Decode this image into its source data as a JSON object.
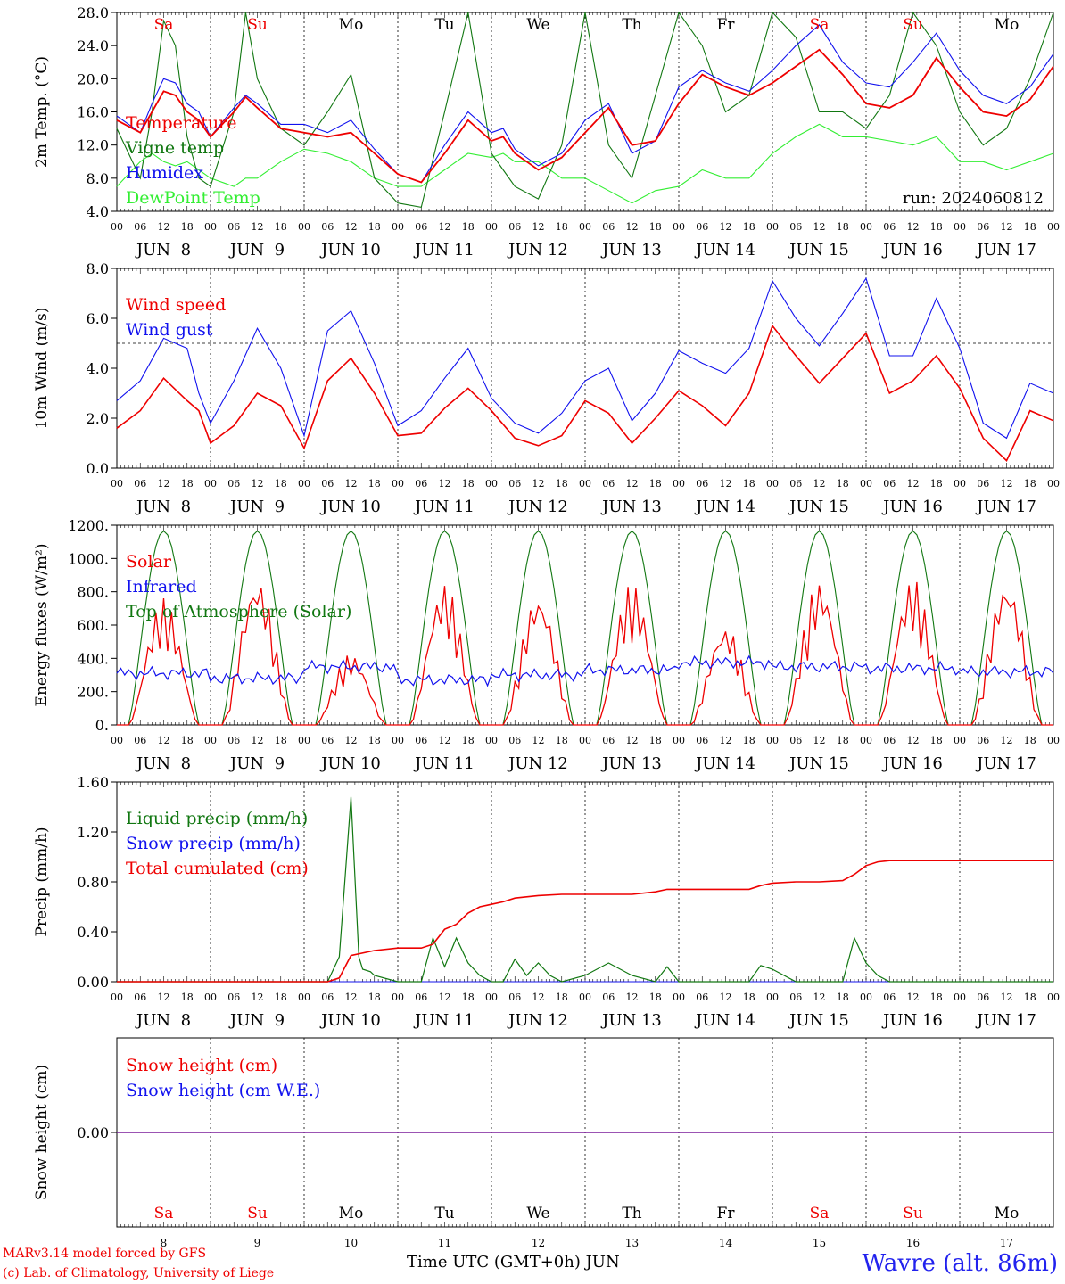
{
  "days": [
    "JUN  8",
    "JUN  9",
    "JUN 10",
    "JUN 11",
    "JUN 12",
    "JUN 13",
    "JUN 14",
    "JUN 15",
    "JUN 16",
    "JUN 17"
  ],
  "hour_ticks": [
    "00",
    "06",
    "12",
    "18"
  ],
  "last_tick": "00",
  "weekdays": [
    {
      "label": "Sa",
      "color": "#ee0000"
    },
    {
      "label": "Su",
      "color": "#ee0000"
    },
    {
      "label": "Mo",
      "color": "#000000"
    },
    {
      "label": "Tu",
      "color": "#000000"
    },
    {
      "label": "We",
      "color": "#000000"
    },
    {
      "label": "Th",
      "color": "#000000"
    },
    {
      "label": "Fr",
      "color": "#000000"
    },
    {
      "label": "Sa",
      "color": "#ee0000"
    },
    {
      "label": "Su",
      "color": "#ee0000"
    },
    {
      "label": "Mo",
      "color": "#000000"
    }
  ],
  "day_numbers": [
    "8",
    "9",
    "10",
    "11",
    "12",
    "13",
    "14",
    "15",
    "16",
    "17"
  ],
  "footer": {
    "model": "MARv3.14 model forced by GFS",
    "lab": "(c) Lab. of Climatology, University of Liege",
    "xlabel": "Time UTC (GMT+0h) JUN",
    "station": "Wavre (alt. 86m)"
  },
  "chart_data": [
    {
      "type": "line",
      "ylabel": "2m Temp. (°C)",
      "ylim": [
        4,
        28
      ],
      "ytick_labels": [
        "4.0",
        "8.0",
        "12.0",
        "16.0",
        "20.0",
        "24.0",
        "28.0"
      ],
      "annotation": "run: 2024060812",
      "legend_position": "upper-left",
      "x_unit": "hours since 2024-06-08 00 UTC",
      "series": [
        {
          "name": "Temperature",
          "color": "#ee0000",
          "x": [
            0,
            6,
            9,
            12,
            15,
            18,
            21,
            24,
            30,
            33,
            36,
            42,
            48,
            54,
            60,
            66,
            72,
            78,
            84,
            90,
            96,
            99,
            102,
            108,
            114,
            120,
            126,
            132,
            138,
            144,
            150,
            156,
            162,
            168,
            174,
            180,
            186,
            192,
            198,
            204,
            210,
            216,
            222,
            228,
            234,
            240
          ],
          "y": [
            15,
            13.5,
            16,
            18.5,
            18,
            16,
            15,
            13,
            16,
            17.8,
            16.5,
            14,
            13.5,
            13,
            13.5,
            11,
            8.5,
            7.5,
            11,
            15,
            12.5,
            13,
            11,
            9,
            10.5,
            13.5,
            16.5,
            12,
            12.5,
            17,
            20.5,
            19,
            18,
            19.5,
            21.5,
            23.5,
            20.5,
            17,
            16.5,
            18,
            22.5,
            19,
            16,
            15.5,
            17.5,
            21.5
          ]
        },
        {
          "name": "Vigne temp",
          "color": "#117711",
          "x": [
            0,
            6,
            9,
            12,
            15,
            18,
            21,
            24,
            30,
            33,
            36,
            42,
            48,
            54,
            60,
            66,
            72,
            78,
            84,
            90,
            96,
            99,
            102,
            108,
            114,
            120,
            126,
            132,
            138,
            144,
            150,
            156,
            162,
            168,
            174,
            180,
            186,
            192,
            198,
            204,
            210,
            216,
            222,
            228,
            234,
            240
          ],
          "y": [
            14,
            8,
            16,
            27,
            24,
            13,
            8,
            7,
            16,
            28,
            20,
            14,
            12,
            16,
            20.5,
            8,
            5,
            4.5,
            16,
            28,
            11,
            9,
            7,
            5.5,
            12,
            28,
            12,
            8,
            18,
            28,
            24,
            16,
            18,
            28,
            25,
            16,
            16,
            14,
            18,
            28,
            24,
            16,
            12,
            14,
            20,
            28
          ]
        },
        {
          "name": "Humidex",
          "color": "#1111ee",
          "x": [
            0,
            6,
            9,
            12,
            15,
            18,
            21,
            24,
            30,
            33,
            36,
            42,
            48,
            54,
            60,
            66,
            72,
            78,
            84,
            90,
            96,
            99,
            102,
            108,
            114,
            120,
            126,
            132,
            138,
            144,
            150,
            156,
            162,
            168,
            174,
            180,
            186,
            192,
            198,
            204,
            210,
            216,
            222,
            228,
            234,
            240
          ],
          "y": [
            15.5,
            13.5,
            17,
            20,
            19.5,
            17,
            16,
            13,
            16.5,
            18,
            17,
            14.5,
            14.5,
            13.5,
            15,
            11.5,
            8.5,
            7.5,
            12,
            16,
            13.5,
            14,
            11.5,
            9.5,
            11,
            15,
            17,
            11,
            12.5,
            19,
            21,
            19.5,
            18.5,
            21,
            24,
            26.5,
            22,
            19.5,
            19,
            22,
            25.5,
            21,
            18,
            17,
            19,
            23
          ]
        },
        {
          "name": "DewPoint Temp",
          "color": "#33ee33",
          "x": [
            0,
            6,
            9,
            12,
            15,
            18,
            21,
            24,
            30,
            33,
            36,
            42,
            48,
            54,
            60,
            66,
            72,
            78,
            84,
            90,
            96,
            99,
            102,
            108,
            114,
            120,
            126,
            132,
            138,
            144,
            150,
            156,
            162,
            168,
            174,
            180,
            186,
            192,
            198,
            204,
            210,
            216,
            222,
            228,
            234,
            240
          ],
          "y": [
            7,
            10,
            11,
            10,
            9.5,
            10,
            9,
            8,
            7,
            8,
            8,
            10,
            11.5,
            11,
            10,
            8,
            7,
            7,
            9,
            11,
            10.5,
            11,
            10,
            10,
            8,
            8,
            6.5,
            5,
            6.5,
            7,
            9,
            8,
            8,
            11,
            13,
            14.5,
            13,
            13,
            12.5,
            12,
            13,
            10,
            10,
            9,
            10,
            11
          ]
        }
      ]
    },
    {
      "type": "line",
      "ylabel": "10m Wind (m/s)",
      "ylim": [
        0,
        8
      ],
      "ytick_labels": [
        "0.0",
        "2.0",
        "4.0",
        "6.0",
        "8.0"
      ],
      "reference_line": 5,
      "legend_position": "upper-left",
      "x_unit": "hours since 2024-06-08 00 UTC",
      "series": [
        {
          "name": "Wind speed",
          "color": "#ee0000",
          "x": [
            0,
            6,
            12,
            18,
            21,
            24,
            30,
            36,
            42,
            48,
            54,
            60,
            66,
            72,
            78,
            84,
            90,
            96,
            102,
            108,
            114,
            120,
            126,
            132,
            138,
            144,
            150,
            156,
            162,
            168,
            174,
            180,
            186,
            192,
            198,
            204,
            210,
            216,
            222,
            228,
            234,
            240
          ],
          "y": [
            1.6,
            2.3,
            3.6,
            2.7,
            2.3,
            1,
            1.7,
            3,
            2.5,
            0.8,
            3.5,
            4.4,
            3,
            1.3,
            1.4,
            2.4,
            3.2,
            2.3,
            1.2,
            0.9,
            1.3,
            2.7,
            2.2,
            1.0,
            2,
            3.1,
            2.5,
            1.7,
            3,
            5.7,
            4.5,
            3.4,
            4.4,
            5.4,
            3,
            3.5,
            4.5,
            3.2,
            1.2,
            0.3,
            2.3,
            1.9
          ]
        },
        {
          "name": "Wind gust",
          "color": "#1111ee",
          "x": [
            0,
            6,
            12,
            18,
            21,
            24,
            30,
            36,
            42,
            48,
            54,
            60,
            66,
            72,
            78,
            84,
            90,
            96,
            102,
            108,
            114,
            120,
            126,
            132,
            138,
            144,
            150,
            156,
            162,
            168,
            174,
            180,
            186,
            192,
            198,
            204,
            210,
            216,
            222,
            228,
            234,
            240
          ],
          "y": [
            2.7,
            3.5,
            5.2,
            4.8,
            3,
            1.8,
            3.5,
            5.6,
            4,
            1.3,
            5.5,
            6.3,
            4.2,
            1.7,
            2.3,
            3.6,
            4.8,
            2.8,
            1.8,
            1.4,
            2.2,
            3.5,
            4,
            1.9,
            3,
            4.7,
            4.2,
            3.8,
            4.8,
            7.5,
            6,
            4.9,
            6.2,
            7.6,
            4.5,
            4.5,
            6.8,
            4.8,
            1.8,
            1.2,
            3.4,
            3
          ]
        }
      ]
    },
    {
      "type": "line",
      "ylabel": "Energy fluxes (W/m²)",
      "ylim": [
        0,
        1200
      ],
      "ytick_labels": [
        "0.",
        "200.",
        "400.",
        "600.",
        "800.",
        "1000.",
        "1200."
      ],
      "legend_position": "upper-left",
      "x_unit": "hours since 2024-06-08 00 UTC",
      "daily_peak_solar": [
        760,
        890,
        430,
        850,
        790,
        850,
        600,
        870,
        880,
        870
      ],
      "daily_peak_toa": 1165,
      "infrared_level": [
        310,
        280,
        350,
        270,
        300,
        330,
        375,
        350,
        340,
        320
      ],
      "series": [
        {
          "name": "Solar",
          "color": "#ee0000"
        },
        {
          "name": "Infrared",
          "color": "#1111ee"
        },
        {
          "name": "Top of Atmosphere (Solar)",
          "color": "#117711"
        }
      ]
    },
    {
      "type": "line",
      "ylabel": "Precip (mm/h)",
      "ylim": [
        0,
        1.6
      ],
      "ytick_labels": [
        "0.00",
        "0.40",
        "0.80",
        "1.20",
        "1.60"
      ],
      "legend_position": "upper-left",
      "x_unit": "hours since 2024-06-08 00 UTC",
      "series": [
        {
          "name": "Liquid precip (mm/h)",
          "color": "#117711",
          "x": [
            0,
            54,
            57,
            60,
            62,
            63,
            65,
            66,
            72,
            78,
            81,
            84,
            87,
            90,
            93,
            96,
            99,
            102,
            105,
            108,
            111,
            114,
            120,
            126,
            132,
            138,
            141,
            144,
            150,
            156,
            162,
            165,
            168,
            174,
            180,
            186,
            189,
            192,
            195,
            198,
            204,
            240
          ],
          "y": [
            0,
            0,
            0.2,
            1.48,
            0.2,
            0.1,
            0.08,
            0.05,
            0,
            0,
            0.35,
            0.12,
            0.35,
            0.15,
            0.05,
            0,
            0,
            0.18,
            0.05,
            0.15,
            0.05,
            0,
            0.05,
            0.15,
            0.05,
            0,
            0.12,
            0,
            0,
            0,
            0,
            0.13,
            0.1,
            0,
            0,
            0,
            0.35,
            0.15,
            0.05,
            0,
            0,
            0
          ]
        },
        {
          "name": "Snow precip (mm/h)",
          "color": "#1111ee",
          "x": [
            0,
            240
          ],
          "y": [
            0,
            0
          ]
        },
        {
          "name": "Total cumulated (cm)",
          "color": "#ee0000",
          "x": [
            0,
            54,
            57,
            60,
            66,
            72,
            78,
            81,
            84,
            87,
            90,
            93,
            96,
            99,
            102,
            108,
            114,
            120,
            126,
            132,
            138,
            141,
            144,
            150,
            156,
            162,
            165,
            168,
            174,
            180,
            186,
            189,
            192,
            195,
            198,
            204,
            240
          ],
          "y": [
            0,
            0,
            0.03,
            0.21,
            0.25,
            0.27,
            0.27,
            0.3,
            0.42,
            0.46,
            0.55,
            0.6,
            0.62,
            0.64,
            0.67,
            0.69,
            0.7,
            0.7,
            0.7,
            0.7,
            0.72,
            0.74,
            0.74,
            0.74,
            0.74,
            0.74,
            0.77,
            0.79,
            0.8,
            0.8,
            0.81,
            0.86,
            0.93,
            0.96,
            0.97,
            0.97,
            0.97
          ]
        }
      ]
    },
    {
      "type": "line",
      "ylabel": "Snow height (cm)",
      "ytick_labels": [
        "0.00"
      ],
      "legend_position": "upper-left",
      "x_unit": "hours since 2024-06-08 00 UTC",
      "series": [
        {
          "name": "Snow height (cm)",
          "color": "#ee0000",
          "x": [
            0,
            240
          ],
          "y": [
            0,
            0
          ]
        },
        {
          "name": "Snow height (cm W.E.)",
          "color": "#1111ee",
          "x": [
            0,
            240
          ],
          "y": [
            0,
            0
          ]
        }
      ]
    }
  ]
}
